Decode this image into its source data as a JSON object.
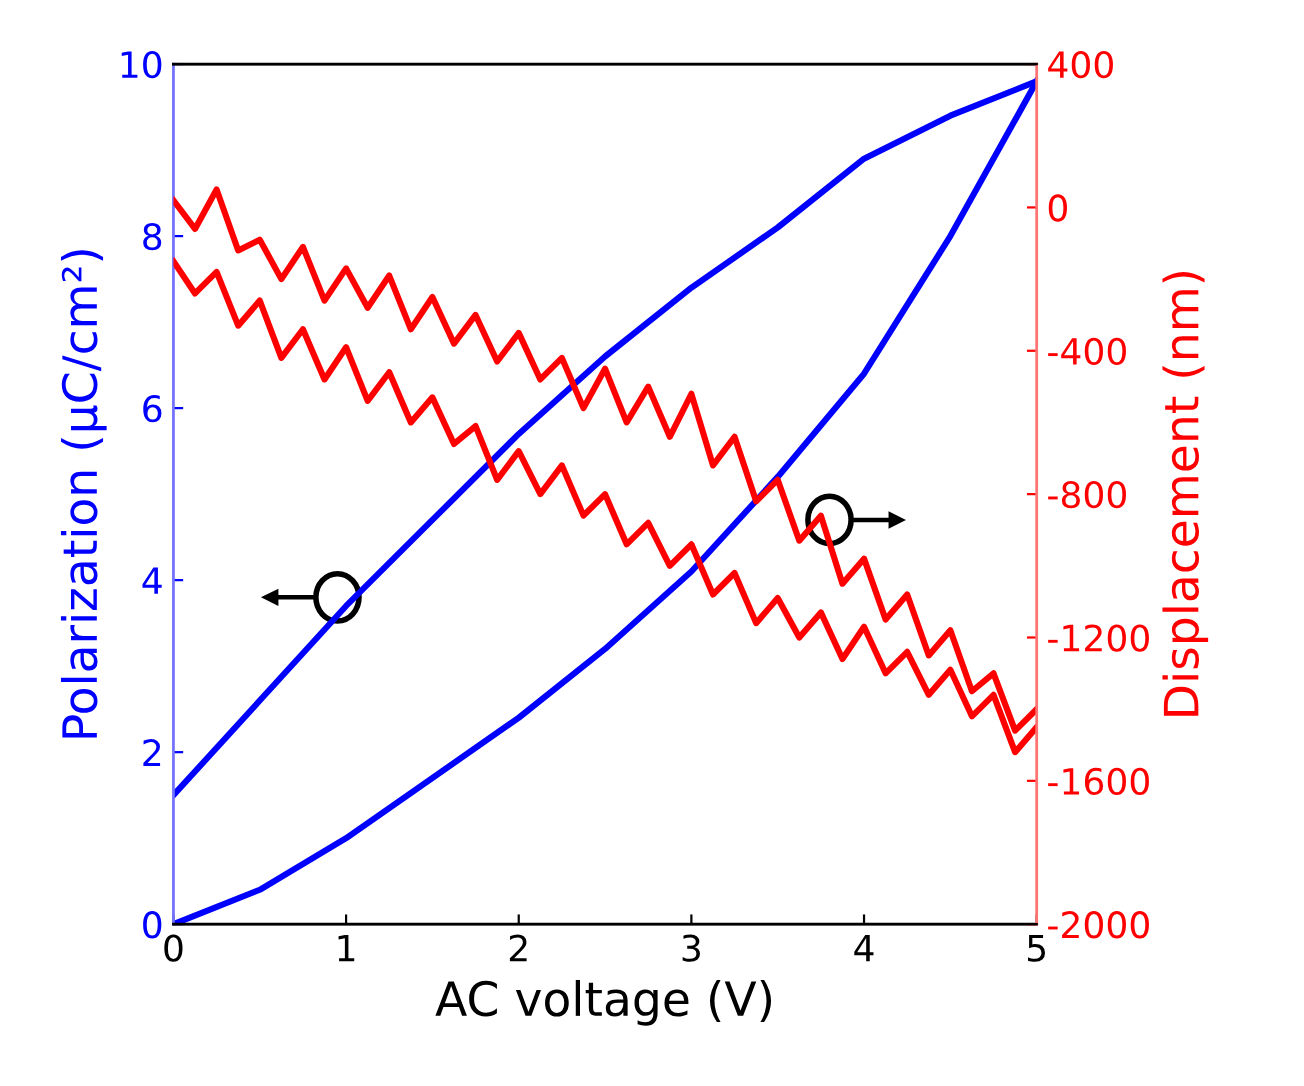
{
  "chart_data": {
    "type": "line",
    "xlabel": "AC voltage (V)",
    "ylabel": "Polarization (µC/cm²)",
    "y2label": "Displacement (nm)",
    "xlim": [
      0,
      5
    ],
    "xticks": [
      0,
      1,
      2,
      3,
      4,
      5
    ],
    "ylim": [
      0,
      10
    ],
    "yticks": [
      0,
      2,
      4,
      6,
      8,
      10
    ],
    "y2lim": [
      -2000,
      400
    ],
    "y2ticks": [
      -2000,
      -1600,
      -1200,
      -800,
      -400,
      0,
      400
    ],
    "grid": false,
    "legend": false,
    "line_style": "solid",
    "marker": "none",
    "series": [
      {
        "color": "#0000ff",
        "axis": "y",
        "x": [
          0,
          0.5,
          1,
          1.5,
          2,
          2.5,
          3,
          3.5,
          4,
          4.5,
          5
        ],
        "values": [
          0,
          0.4,
          1.0,
          1.7,
          2.4,
          3.2,
          4.1,
          5.2,
          6.4,
          8.0,
          9.8
        ]
      },
      {
        "color": "#0000ff",
        "axis": "y",
        "x": [
          0,
          0.5,
          1,
          1.5,
          2,
          2.5,
          3,
          3.5,
          4,
          4.5,
          5
        ],
        "values": [
          1.5,
          2.6,
          3.7,
          4.7,
          5.7,
          6.6,
          7.4,
          8.1,
          8.9,
          9.4,
          9.8
        ]
      },
      {
        "color": "#ff0000",
        "axis": "y2",
        "x": [
          0,
          0.125,
          0.25,
          0.375,
          0.5,
          0.625,
          0.75,
          0.875,
          1,
          1.125,
          1.25,
          1.375,
          1.5,
          1.625,
          1.75,
          1.875,
          2,
          2.125,
          2.25,
          2.375,
          2.5,
          2.625,
          2.75,
          2.875,
          3,
          3.125,
          3.25,
          3.375,
          3.5,
          3.625,
          3.75,
          3.875,
          4,
          4.125,
          4.25,
          4.375,
          4.5,
          4.625,
          4.75,
          4.875,
          5
        ],
        "values": [
          20,
          -60,
          50,
          -120,
          -90,
          -200,
          -110,
          -260,
          -170,
          -280,
          -190,
          -340,
          -250,
          -380,
          -300,
          -430,
          -350,
          -480,
          -420,
          -560,
          -450,
          -600,
          -500,
          -640,
          -520,
          -720,
          -640,
          -820,
          -760,
          -930,
          -860,
          -1050,
          -980,
          -1150,
          -1080,
          -1250,
          -1180,
          -1350,
          -1300,
          -1460,
          -1400
        ]
      },
      {
        "color": "#ff0000",
        "axis": "y2",
        "x": [
          0,
          0.125,
          0.25,
          0.375,
          0.5,
          0.625,
          0.75,
          0.875,
          1,
          1.125,
          1.25,
          1.375,
          1.5,
          1.625,
          1.75,
          1.875,
          2,
          2.125,
          2.25,
          2.375,
          2.5,
          2.625,
          2.75,
          2.875,
          3,
          3.125,
          3.25,
          3.375,
          3.5,
          3.625,
          3.75,
          3.875,
          4,
          4.125,
          4.25,
          4.375,
          4.5,
          4.625,
          4.75,
          4.875,
          5
        ],
        "values": [
          -150,
          -240,
          -180,
          -330,
          -260,
          -420,
          -340,
          -480,
          -390,
          -540,
          -460,
          -600,
          -530,
          -660,
          -610,
          -760,
          -680,
          -800,
          -720,
          -860,
          -800,
          -940,
          -880,
          -1000,
          -940,
          -1080,
          -1020,
          -1160,
          -1090,
          -1200,
          -1130,
          -1260,
          -1170,
          -1300,
          -1240,
          -1360,
          -1290,
          -1420,
          -1360,
          -1520,
          -1450
        ]
      }
    ]
  }
}
